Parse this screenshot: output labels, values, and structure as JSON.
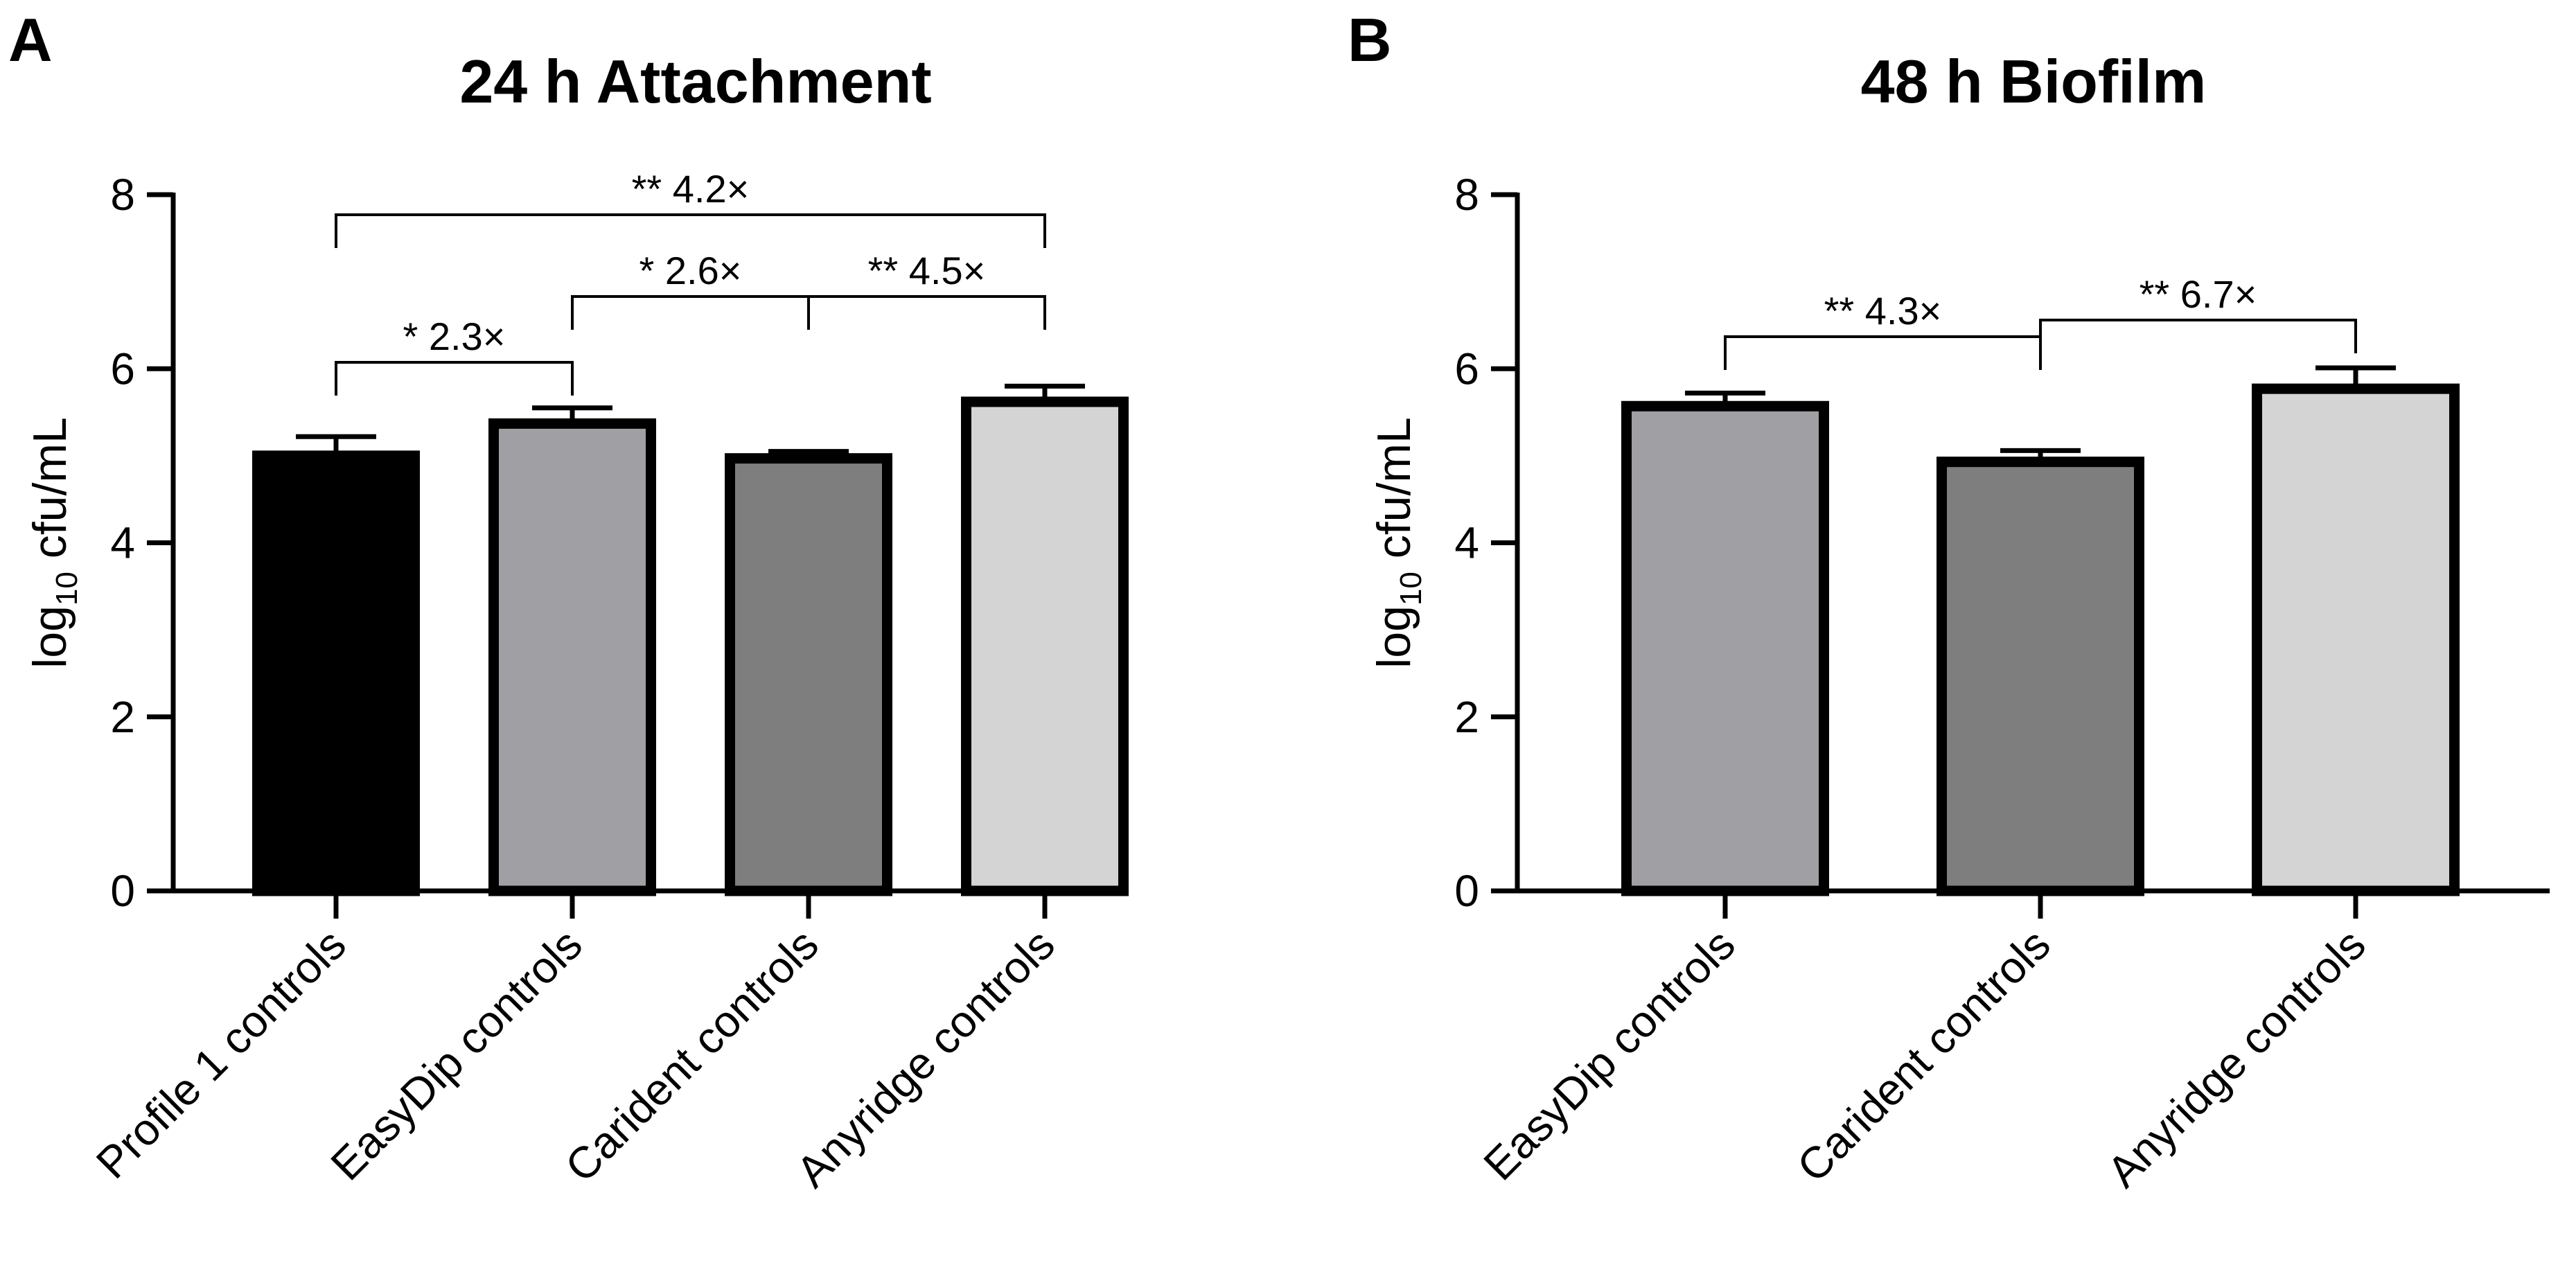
{
  "chart_data": [
    {
      "panel": "A",
      "type": "bar",
      "title": "24 h Attachment",
      "ylabel": {
        "main": "log",
        "sub": "10",
        "rest": " cfu/mL"
      },
      "ylim": [
        0,
        8
      ],
      "yticks": [
        "0",
        "2",
        "4",
        "6",
        "8"
      ],
      "categories": [
        "Profile 1 controls",
        "EasyDip controls",
        "Carident controls",
        "Anyridge controls"
      ],
      "values": [
        5.0,
        5.37,
        4.97,
        5.62
      ],
      "errors": [
        0.22,
        0.18,
        0.08,
        0.18
      ],
      "colors": [
        "#000000",
        "#a0a0a4",
        "#7e7e7e",
        "#d4d4d4"
      ],
      "significance": [
        {
          "from": 0,
          "to": 1,
          "label": "* 2.3×"
        },
        {
          "from": 1,
          "to": 2,
          "label": "* 2.6×"
        },
        {
          "from": 2,
          "to": 3,
          "label": "** 4.5×"
        },
        {
          "from": 0,
          "to": 3,
          "label": "** 4.2×"
        }
      ]
    },
    {
      "panel": "B",
      "type": "bar",
      "title": "48 h Biofilm",
      "ylabel": {
        "main": "log",
        "sub": "10",
        "rest": " cfu/mL"
      },
      "ylim": [
        0,
        8
      ],
      "yticks": [
        "0",
        "2",
        "4",
        "6",
        "8"
      ],
      "categories": [
        "EasyDip controls",
        "Carident controls",
        "Anyridge controls"
      ],
      "values": [
        5.57,
        4.93,
        5.77
      ],
      "errors": [
        0.15,
        0.13,
        0.24
      ],
      "colors": [
        "#a0a0a4",
        "#7e7e7e",
        "#d4d4d4"
      ],
      "significance": [
        {
          "from": 0,
          "to": 1,
          "label": "** 4.3×"
        },
        {
          "from": 1,
          "to": 2,
          "label": "** 6.7×"
        }
      ]
    }
  ]
}
